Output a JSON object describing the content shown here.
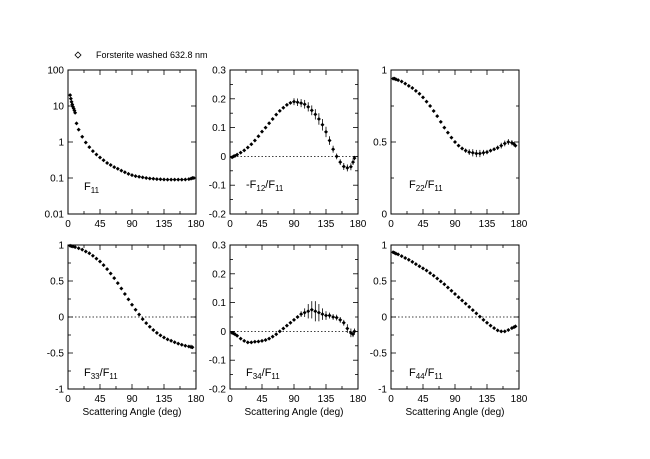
{
  "legend": {
    "label": "Forsterite washed 632.8 nm"
  },
  "xaxis": {
    "label": "Scattering Angle (deg)",
    "range": [
      0,
      180
    ],
    "ticks": [
      0,
      45,
      90,
      135,
      180
    ],
    "tick_labels": [
      "0",
      "45",
      "90",
      "135",
      "180"
    ]
  },
  "chart_data": [
    {
      "type": "scatter",
      "panel_label": {
        "main": "F",
        "sub": "11",
        "den_main": "",
        "den_sub": ""
      },
      "yscale": "log",
      "ylim": [
        0.01,
        100
      ],
      "yticks": [
        0.01,
        0.1,
        1,
        10,
        100
      ],
      "ytick_labels": [
        "0.01",
        "0.1",
        "1",
        "10",
        "100"
      ],
      "zero_line": false,
      "series": [
        {
          "name": "Forsterite washed 632.8 nm",
          "x": [
            3,
            4,
            5,
            6,
            7,
            8,
            9,
            10,
            12,
            15,
            20,
            25,
            30,
            35,
            40,
            45,
            50,
            55,
            60,
            65,
            70,
            75,
            80,
            85,
            90,
            95,
            100,
            105,
            110,
            115,
            120,
            125,
            130,
            135,
            140,
            145,
            150,
            155,
            160,
            165,
            170,
            173,
            175,
            177
          ],
          "y": [
            20,
            16,
            13,
            11,
            9.5,
            8.5,
            7.5,
            6.5,
            3.3,
            2.2,
            1.4,
            0.97,
            0.72,
            0.56,
            0.45,
            0.37,
            0.31,
            0.26,
            0.23,
            0.2,
            0.18,
            0.16,
            0.145,
            0.13,
            0.12,
            0.113,
            0.108,
            0.104,
            0.1,
            0.097,
            0.095,
            0.093,
            0.092,
            0.091,
            0.09,
            0.09,
            0.09,
            0.09,
            0.09,
            0.091,
            0.093,
            0.096,
            0.1,
            0.1
          ]
        }
      ]
    },
    {
      "type": "scatter",
      "panel_label": {
        "main": "-F",
        "sub": "12",
        "den_main": "F",
        "den_sub": "11"
      },
      "yscale": "linear",
      "ylim": [
        -0.2,
        0.3
      ],
      "yticks": [
        -0.2,
        -0.1,
        0,
        0.1,
        0.2,
        0.3
      ],
      "ytick_labels": [
        "-0.2",
        "-0.1",
        "0",
        "0.1",
        "0.2",
        "0.3"
      ],
      "zero_line": true,
      "series": [
        {
          "name": "Forsterite washed 632.8 nm",
          "x": [
            3,
            5,
            7,
            10,
            15,
            20,
            25,
            30,
            35,
            40,
            45,
            50,
            55,
            60,
            65,
            70,
            75,
            80,
            85,
            90,
            95,
            100,
            105,
            110,
            115,
            120,
            125,
            130,
            135,
            140,
            145,
            150,
            155,
            160,
            165,
            170,
            173,
            175
          ],
          "y": [
            -0.003,
            0.0,
            0.002,
            0.006,
            0.013,
            0.021,
            0.031,
            0.042,
            0.055,
            0.07,
            0.086,
            0.1,
            0.115,
            0.13,
            0.145,
            0.158,
            0.169,
            0.179,
            0.186,
            0.19,
            0.188,
            0.185,
            0.181,
            0.172,
            0.16,
            0.146,
            0.13,
            0.11,
            0.085,
            0.055,
            0.025,
            0.0,
            -0.02,
            -0.035,
            -0.04,
            -0.036,
            -0.02,
            -0.006
          ],
          "err": [
            0,
            0,
            0,
            0,
            0,
            0,
            0,
            0,
            0,
            0,
            0,
            0,
            0,
            0,
            0,
            0,
            0,
            0,
            0,
            0.012,
            0.013,
            0.014,
            0.015,
            0.016,
            0.017,
            0.018,
            0.02,
            0.02,
            0.018,
            0.015,
            0.012,
            0.01,
            0.01,
            0.012,
            0.012,
            0.012,
            0.01,
            0.008
          ]
        }
      ]
    },
    {
      "type": "scatter",
      "panel_label": {
        "main": "F",
        "sub": "22",
        "den_main": "F",
        "den_sub": "11"
      },
      "yscale": "linear",
      "ylim": [
        0,
        1
      ],
      "yticks": [
        0,
        0.5,
        1
      ],
      "ytick_labels": [
        "0",
        "0.5",
        "1"
      ],
      "zero_line": false,
      "series": [
        {
          "name": "Forsterite washed 632.8 nm",
          "x": [
            3,
            5,
            7,
            10,
            15,
            20,
            25,
            30,
            35,
            40,
            45,
            50,
            55,
            60,
            65,
            70,
            75,
            80,
            85,
            90,
            95,
            100,
            105,
            110,
            115,
            120,
            125,
            130,
            135,
            140,
            145,
            150,
            155,
            160,
            165,
            170,
            173,
            175
          ],
          "y": [
            0.94,
            0.94,
            0.935,
            0.93,
            0.92,
            0.905,
            0.89,
            0.875,
            0.855,
            0.835,
            0.81,
            0.78,
            0.75,
            0.715,
            0.68,
            0.64,
            0.6,
            0.565,
            0.53,
            0.5,
            0.475,
            0.455,
            0.44,
            0.43,
            0.425,
            0.42,
            0.42,
            0.425,
            0.43,
            0.44,
            0.45,
            0.46,
            0.475,
            0.49,
            0.5,
            0.495,
            0.485,
            0.475
          ],
          "err": [
            0,
            0,
            0,
            0,
            0,
            0,
            0,
            0,
            0,
            0,
            0,
            0,
            0,
            0,
            0,
            0,
            0,
            0,
            0,
            0,
            0.01,
            0.012,
            0.015,
            0.02,
            0.025,
            0.025,
            0.025,
            0.02,
            0.015,
            0.012,
            0.012,
            0.015,
            0.02,
            0.02,
            0.02,
            0.018,
            0.015,
            0.012
          ]
        }
      ]
    },
    {
      "type": "scatter",
      "panel_label": {
        "main": "F",
        "sub": "33",
        "den_main": "F",
        "den_sub": "11"
      },
      "yscale": "linear",
      "ylim": [
        -1,
        1
      ],
      "yticks": [
        -1,
        -0.5,
        0,
        0.5,
        1
      ],
      "ytick_labels": [
        "-1",
        "-0.5",
        "0",
        "0.5",
        "1"
      ],
      "zero_line": true,
      "series": [
        {
          "name": "Forsterite washed 632.8 nm",
          "x": [
            3,
            5,
            7,
            10,
            15,
            20,
            25,
            30,
            35,
            40,
            45,
            50,
            55,
            60,
            65,
            70,
            75,
            80,
            85,
            90,
            95,
            100,
            105,
            110,
            115,
            120,
            125,
            130,
            135,
            140,
            145,
            150,
            155,
            160,
            165,
            170,
            173,
            175
          ],
          "y": [
            0.99,
            0.985,
            0.98,
            0.97,
            0.955,
            0.935,
            0.91,
            0.885,
            0.85,
            0.81,
            0.77,
            0.72,
            0.665,
            0.605,
            0.54,
            0.47,
            0.395,
            0.32,
            0.245,
            0.17,
            0.1,
            0.035,
            -0.03,
            -0.085,
            -0.135,
            -0.18,
            -0.22,
            -0.255,
            -0.285,
            -0.31,
            -0.33,
            -0.35,
            -0.37,
            -0.385,
            -0.4,
            -0.41,
            -0.415,
            -0.42
          ],
          "err": [
            0,
            0,
            0,
            0,
            0,
            0,
            0,
            0,
            0,
            0,
            0,
            0,
            0,
            0,
            0,
            0,
            0,
            0,
            0,
            0,
            0,
            0,
            0,
            0,
            0,
            0,
            0,
            0,
            0,
            0,
            0,
            0,
            0,
            0,
            0,
            0.02,
            0.03,
            0.025
          ]
        }
      ]
    },
    {
      "type": "scatter",
      "panel_label": {
        "main": "F",
        "sub": "34",
        "den_main": "F",
        "den_sub": "11"
      },
      "yscale": "linear",
      "ylim": [
        -0.2,
        0.3
      ],
      "yticks": [
        -0.2,
        -0.1,
        0,
        0.1,
        0.2,
        0.3
      ],
      "ytick_labels": [
        "-0.2",
        "-0.1",
        "0",
        "0.1",
        "0.2",
        "0.3"
      ],
      "zero_line": true,
      "series": [
        {
          "name": "Forsterite washed 632.8 nm",
          "x": [
            3,
            5,
            7,
            10,
            15,
            20,
            25,
            30,
            35,
            40,
            45,
            50,
            55,
            60,
            65,
            70,
            75,
            80,
            85,
            90,
            95,
            100,
            105,
            110,
            115,
            120,
            125,
            130,
            135,
            140,
            145,
            150,
            155,
            160,
            165,
            170,
            173,
            175
          ],
          "y": [
            -0.005,
            -0.007,
            -0.01,
            -0.015,
            -0.025,
            -0.033,
            -0.038,
            -0.038,
            -0.036,
            -0.035,
            -0.033,
            -0.03,
            -0.025,
            -0.018,
            -0.01,
            0.0,
            0.01,
            0.02,
            0.03,
            0.04,
            0.05,
            0.06,
            0.065,
            0.07,
            0.075,
            0.07,
            0.065,
            0.06,
            0.055,
            0.055,
            0.05,
            0.048,
            0.04,
            0.03,
            0.01,
            -0.005,
            -0.01,
            0.0
          ],
          "err": [
            0,
            0,
            0,
            0,
            0,
            0,
            0,
            0,
            0,
            0,
            0,
            0,
            0,
            0,
            0,
            0,
            0,
            0,
            0,
            0,
            0.005,
            0.01,
            0.015,
            0.025,
            0.03,
            0.035,
            0.03,
            0.02,
            0.015,
            0.01,
            0.01,
            0.01,
            0.01,
            0.01,
            0.015,
            0.015,
            0.01,
            0.01
          ]
        }
      ]
    },
    {
      "type": "scatter",
      "panel_label": {
        "main": "F",
        "sub": "44",
        "den_main": "F",
        "den_sub": "11"
      },
      "yscale": "linear",
      "ylim": [
        -1,
        1
      ],
      "yticks": [
        -1,
        -0.5,
        0,
        0.5,
        1
      ],
      "ytick_labels": [
        "-1",
        "-0.5",
        "0",
        "0.5",
        "1"
      ],
      "zero_line": true,
      "series": [
        {
          "name": "Forsterite washed 632.8 nm",
          "x": [
            3,
            5,
            7,
            10,
            15,
            20,
            25,
            30,
            35,
            40,
            45,
            50,
            55,
            60,
            65,
            70,
            75,
            80,
            85,
            90,
            95,
            100,
            105,
            110,
            115,
            120,
            125,
            130,
            135,
            140,
            145,
            150,
            155,
            160,
            165,
            170,
            173,
            175
          ],
          "y": [
            0.9,
            0.89,
            0.88,
            0.87,
            0.845,
            0.82,
            0.795,
            0.765,
            0.735,
            0.705,
            0.675,
            0.645,
            0.61,
            0.575,
            0.535,
            0.495,
            0.455,
            0.41,
            0.365,
            0.32,
            0.275,
            0.23,
            0.185,
            0.14,
            0.095,
            0.05,
            0.005,
            -0.04,
            -0.08,
            -0.12,
            -0.155,
            -0.185,
            -0.2,
            -0.2,
            -0.18,
            -0.155,
            -0.14,
            -0.13
          ],
          "err": [
            0,
            0,
            0,
            0,
            0,
            0,
            0,
            0,
            0,
            0,
            0,
            0,
            0,
            0,
            0,
            0,
            0,
            0,
            0,
            0,
            0,
            0,
            0,
            0,
            0,
            0,
            0,
            0,
            0,
            0,
            0,
            0.01,
            0.015,
            0.015,
            0.015,
            0.015,
            0.015,
            0.02
          ]
        }
      ]
    }
  ]
}
